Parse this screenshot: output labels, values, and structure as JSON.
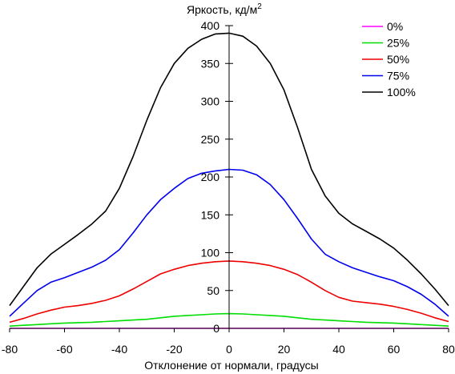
{
  "chart_data": {
    "type": "line",
    "title": "",
    "ylabel": "Яркость, кд/м",
    "ylabel_superscript": "2",
    "xlabel": "Отклонение от нормали, градусы",
    "xlim": [
      -80,
      80
    ],
    "ylim": [
      0,
      400
    ],
    "x_ticks": [
      "-80",
      "-60",
      "-40",
      "-20",
      "0",
      "20",
      "40",
      "60",
      "80"
    ],
    "y_ticks": [
      "0",
      "50",
      "100",
      "150",
      "200",
      "250",
      "300",
      "350",
      "400"
    ],
    "x_tick_values": [
      -80,
      -60,
      -40,
      -20,
      0,
      20,
      40,
      60,
      80
    ],
    "y_tick_values": [
      0,
      50,
      100,
      150,
      200,
      250,
      300,
      350,
      400
    ],
    "grid": false,
    "y_axis_position": "x=0",
    "legend_position": "top-right",
    "x": [
      -80,
      -75,
      -70,
      -65,
      -60,
      -55,
      -50,
      -45,
      -40,
      -35,
      -30,
      -25,
      -20,
      -15,
      -10,
      -5,
      0,
      5,
      10,
      15,
      20,
      25,
      30,
      35,
      40,
      45,
      50,
      55,
      60,
      65,
      70,
      75,
      80
    ],
    "series": [
      {
        "name": "0%",
        "color": "#ff00ff",
        "values": [
          0,
          0,
          0,
          0,
          0,
          0,
          0,
          0,
          0,
          0,
          0,
          0,
          0,
          0,
          0,
          0,
          0,
          0,
          0,
          0,
          0,
          0,
          0,
          0,
          0,
          0,
          0,
          0,
          0,
          0,
          0,
          0,
          0
        ]
      },
      {
        "name": "25%",
        "color": "#00dd00",
        "values": [
          3,
          4,
          5,
          6,
          7,
          7.5,
          8,
          9,
          10,
          11,
          12,
          14,
          16,
          17,
          18,
          19,
          19.5,
          19,
          18,
          17,
          16,
          14,
          12,
          11,
          10,
          9,
          8,
          7.5,
          7,
          6,
          5,
          4,
          3
        ]
      },
      {
        "name": "50%",
        "color": "#ee0000",
        "values": [
          8,
          13,
          19,
          24,
          28,
          30,
          33,
          37,
          43,
          52,
          62,
          72,
          78,
          83,
          86,
          88,
          89,
          88,
          86,
          83,
          78,
          71,
          61,
          50,
          41,
          36,
          34,
          32,
          29,
          25,
          20,
          14,
          9
        ]
      },
      {
        "name": "75%",
        "color": "#0000ee",
        "values": [
          16,
          33,
          50,
          61,
          67,
          74,
          81,
          90,
          104,
          126,
          150,
          170,
          185,
          198,
          205,
          208,
          210,
          209,
          203,
          190,
          170,
          145,
          118,
          98,
          88,
          80,
          74,
          68,
          63,
          55,
          45,
          32,
          16
        ]
      },
      {
        "name": "100%",
        "color": "#000000",
        "values": [
          30,
          55,
          80,
          98,
          111,
          124,
          138,
          155,
          185,
          227,
          275,
          318,
          350,
          370,
          382,
          389,
          390,
          386,
          373,
          350,
          315,
          265,
          210,
          175,
          152,
          138,
          128,
          118,
          106,
          90,
          72,
          52,
          30
        ]
      }
    ]
  }
}
